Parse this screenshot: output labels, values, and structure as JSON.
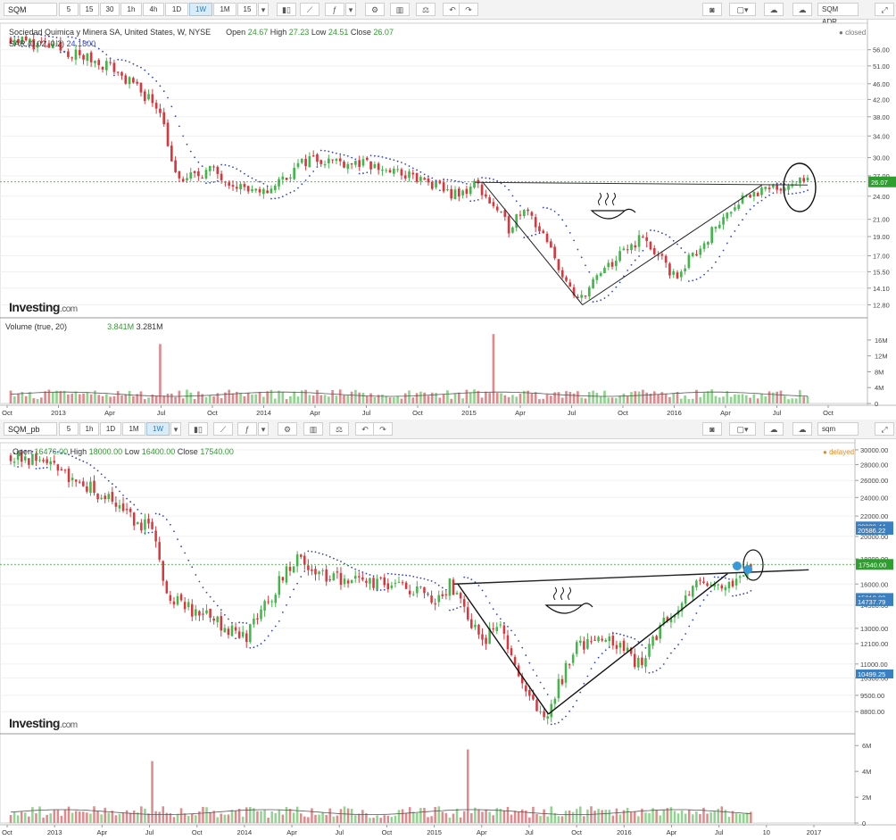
{
  "top": {
    "toolbar": {
      "symbol": "SQM",
      "intervals": [
        "5",
        "15",
        "30",
        "1h",
        "4h",
        "1D",
        "1W",
        "1M",
        "15"
      ],
      "active": "1W",
      "right_label": "SQM ADR"
    },
    "legend": {
      "title": "Sociedad Quimica y Minera SA, United States, W, NYSE",
      "open_label": "Open",
      "open": "24.67",
      "high_label": "High",
      "high": "27.23",
      "low_label": "Low",
      "low": "24.51",
      "close_label": "Close",
      "close": "26.07",
      "sar_label": "SAR (0.02, 0.2)",
      "sar_value": "24.1800"
    },
    "status": "closed",
    "brand": "Investing",
    "brand_suffix": ".com",
    "volume_legend": {
      "label": "Volume (true, 20)",
      "v1": "3.841M",
      "v2": "3.281M"
    },
    "price_tag": "26.07",
    "y_ticks": [
      "56.00",
      "51.00",
      "46.00",
      "42.00",
      "38.00",
      "34.00",
      "30.00",
      "27.00",
      "24.00",
      "21.00",
      "19.00",
      "17.00",
      "15.50",
      "14.10",
      "12.80"
    ],
    "vol_ticks": [
      "16M",
      "12M",
      "8M",
      "4M",
      "0"
    ],
    "x_ticks": [
      "Oct",
      "2013",
      "Apr",
      "Jul",
      "Oct",
      "2014",
      "Apr",
      "Jul",
      "Oct",
      "2015",
      "Apr",
      "Jul",
      "Oct",
      "2016",
      "Apr",
      "Jul",
      "Oct"
    ]
  },
  "bottom": {
    "toolbar": {
      "symbol": "SQM_pb",
      "intervals": [
        "5",
        "1h",
        "1D",
        "1M",
        "1W"
      ],
      "active": "1W",
      "right_label": "sqm"
    },
    "legend": {
      "open_label": "Open",
      "open": "16476.00",
      "high_label": "High",
      "high": "18000.00",
      "low_label": "Low",
      "low": "16400.00",
      "close_label": "Close",
      "close": "17540.00"
    },
    "status": "delayed",
    "brand": "Investing",
    "brand_suffix": ".com",
    "price_tag": "17540.00",
    "side_tags": [
      "20988.44",
      "20988.44",
      "20586.22",
      "15018.00",
      "14737.79",
      "10499.25"
    ],
    "y_ticks": [
      "30000.00",
      "28000.00",
      "26000.00",
      "24000.00",
      "22000.00",
      "20000.00",
      "18000.00",
      "16000.00",
      "14500.00",
      "13000.00",
      "12100.00",
      "11000.00",
      "10300.00",
      "9500.00",
      "8800.00"
    ],
    "vol_ticks": [
      "6M",
      "4M",
      "2M",
      "0"
    ],
    "x_ticks": [
      "Oct",
      "2013",
      "Apr",
      "Jul",
      "Oct",
      "2014",
      "Apr",
      "Jul",
      "Oct",
      "2015",
      "Apr",
      "Jul",
      "Oct",
      "2016",
      "Apr",
      "Jul",
      "10",
      "2017"
    ]
  },
  "colors": {
    "up": "#41b649",
    "down": "#d9373d",
    "sar": "#3344cc",
    "price_line": "#2e9e2e",
    "tag_blue": "#3a7fc1"
  },
  "chart_data": [
    {
      "type": "candlestick",
      "symbol": "SQM",
      "interval": "W",
      "currency_units": "USD",
      "last_price": 26.07,
      "ylim": [
        12.0,
        62.0
      ],
      "y_scale": "log",
      "x_range": [
        "2012-10",
        "2016-10"
      ],
      "anchor_points": [
        {
          "date": "2012-10",
          "close": 60
        },
        {
          "date": "2013-01",
          "close": 56
        },
        {
          "date": "2013-04",
          "close": 51
        },
        {
          "date": "2013-07",
          "close": 40
        },
        {
          "date": "2013-08",
          "close": 26
        },
        {
          "date": "2013-10",
          "close": 28
        },
        {
          "date": "2014-01",
          "close": 24
        },
        {
          "date": "2014-04",
          "close": 30
        },
        {
          "date": "2014-07",
          "close": 29
        },
        {
          "date": "2014-10",
          "close": 27
        },
        {
          "date": "2015-01",
          "close": 24
        },
        {
          "date": "2015-02",
          "close": 26
        },
        {
          "date": "2015-04",
          "close": 20
        },
        {
          "date": "2015-05",
          "close": 23
        },
        {
          "date": "2015-07",
          "close": 16
        },
        {
          "date": "2015-08",
          "close": 13
        },
        {
          "date": "2015-10",
          "close": 16
        },
        {
          "date": "2015-12",
          "close": 19
        },
        {
          "date": "2016-02",
          "close": 15
        },
        {
          "date": "2016-04",
          "close": 19
        },
        {
          "date": "2016-06",
          "close": 24
        },
        {
          "date": "2016-08",
          "close": 25
        },
        {
          "date": "2016-09",
          "close": 26.07
        }
      ],
      "volume_units": "shares",
      "volume_ylim": [
        0,
        18000000
      ],
      "volume_spikes": [
        {
          "date": "2013-07",
          "value": 15000000
        },
        {
          "date": "2015-03",
          "value": 17500000
        }
      ],
      "annotations": [
        "neckline",
        "cup and handle",
        "circle on last candles"
      ]
    },
    {
      "type": "candlestick",
      "symbol": "SQM_pb",
      "interval": "W",
      "last_price": 17540,
      "ylim": [
        8000,
        30500
      ],
      "y_scale": "log",
      "x_range": [
        "2012-10",
        "2016-09"
      ],
      "anchor_points": [
        {
          "date": "2012-10",
          "close": 29500
        },
        {
          "date": "2013-01",
          "close": 27500
        },
        {
          "date": "2013-04",
          "close": 24000
        },
        {
          "date": "2013-07",
          "close": 20500
        },
        {
          "date": "2013-08",
          "close": 15000
        },
        {
          "date": "2013-10",
          "close": 14000
        },
        {
          "date": "2014-01",
          "close": 12500
        },
        {
          "date": "2014-04",
          "close": 18000
        },
        {
          "date": "2014-07",
          "close": 16200
        },
        {
          "date": "2014-10",
          "close": 16000
        },
        {
          "date": "2015-01",
          "close": 15000
        },
        {
          "date": "2015-02",
          "close": 16000
        },
        {
          "date": "2015-04",
          "close": 12000
        },
        {
          "date": "2015-05",
          "close": 13500
        },
        {
          "date": "2015-07",
          "close": 9500
        },
        {
          "date": "2015-08",
          "close": 8700
        },
        {
          "date": "2015-10",
          "close": 12000
        },
        {
          "date": "2015-12",
          "close": 12500
        },
        {
          "date": "2016-02",
          "close": 11000
        },
        {
          "date": "2016-04",
          "close": 14000
        },
        {
          "date": "2016-06",
          "close": 16500
        },
        {
          "date": "2016-08",
          "close": 16000
        },
        {
          "date": "2016-09",
          "close": 17540
        }
      ],
      "volume_units": "shares",
      "volume_ylim": [
        0,
        6500000
      ],
      "volume_spikes": [
        {
          "date": "2013-07",
          "value": 4800000
        },
        {
          "date": "2015-03",
          "value": 5700000
        }
      ]
    }
  ]
}
